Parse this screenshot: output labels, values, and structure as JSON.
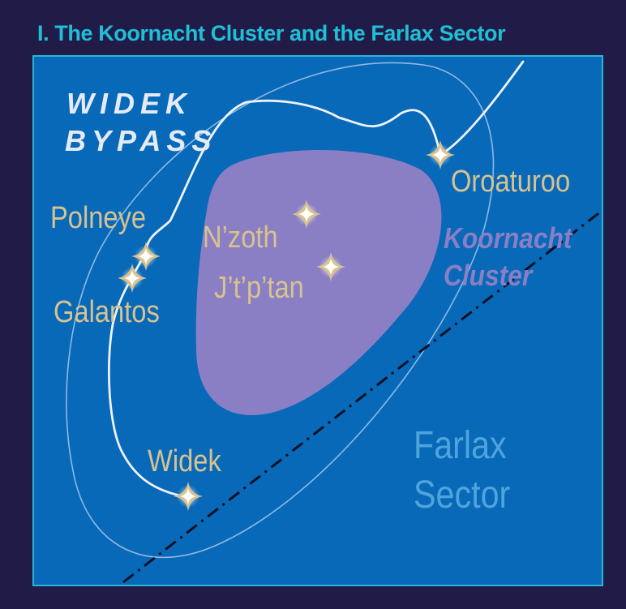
{
  "title": "I. The Koornacht Cluster and the Farlax Sector",
  "route": {
    "line1": "WIDEK",
    "line2": "BYPASS"
  },
  "places": {
    "oroaturoo": "Oroaturoo",
    "polneye": "Polneye",
    "galantos": "Galantos",
    "nzoth": "N’zoth",
    "jtptan": "J’t’p’tan",
    "widek": "Widek"
  },
  "regions": {
    "koornacht_line1": "Koornacht",
    "koornacht_line2": "Cluster",
    "farlax_line1": "Farlax",
    "farlax_line2": "Sector"
  },
  "colors": {
    "page_background": "#211c47",
    "map_background": "#0869b9",
    "title": "#1fbfd6",
    "cluster_fill": "#8a7fc4",
    "route_line": "#eef2fa",
    "star_label": "#d8c28f",
    "sector_label": "#4fa4dc",
    "boundary_line": "#0b1022"
  },
  "icons": {
    "system_marker": "four-point-star-icon"
  }
}
